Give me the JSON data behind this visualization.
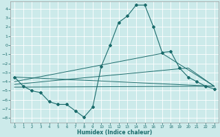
{
  "xlabel": "Humidex (Indice chaleur)",
  "background_color": "#cceaea",
  "grid_color": "#b8d8d8",
  "line_color": "#1a6b6b",
  "xlim": [
    -0.5,
    23.5
  ],
  "ylim": [
    -8.5,
    4.8
  ],
  "yticks": [
    4,
    3,
    2,
    1,
    0,
    -1,
    -2,
    -3,
    -4,
    -5,
    -6,
    -7,
    -8
  ],
  "xticks": [
    0,
    1,
    2,
    3,
    4,
    5,
    6,
    7,
    8,
    9,
    10,
    11,
    12,
    13,
    14,
    15,
    16,
    17,
    18,
    19,
    20,
    21,
    22,
    23
  ],
  "main_x": [
    0,
    1,
    2,
    3,
    4,
    5,
    6,
    7,
    8,
    9,
    10,
    11,
    12,
    13,
    14,
    15,
    16,
    17,
    18,
    19,
    20,
    21,
    22,
    23
  ],
  "main_y": [
    -3.5,
    -4.5,
    -5.0,
    -5.2,
    -6.2,
    -6.5,
    -6.5,
    -7.2,
    -7.9,
    -6.8,
    -2.3,
    0.0,
    2.5,
    3.2,
    4.4,
    4.4,
    2.0,
    -0.8,
    -0.7,
    -2.5,
    -3.5,
    -4.0,
    -4.5,
    -4.8
  ],
  "trend1_x": [
    0,
    23
  ],
  "trend1_y": [
    -3.5,
    -4.5
  ],
  "trend2_x": [
    0,
    20,
    23
  ],
  "trend2_y": [
    -4.3,
    -2.5,
    -4.5
  ],
  "trend3_x": [
    0,
    23
  ],
  "trend3_y": [
    -4.6,
    -4.5
  ],
  "trend4_x": [
    0,
    17,
    23
  ],
  "trend4_y": [
    -4.0,
    -0.9,
    -4.5
  ]
}
